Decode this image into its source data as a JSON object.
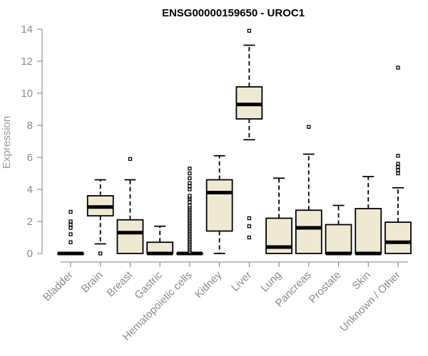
{
  "chart_data": {
    "type": "box",
    "title": "ENSG00000159650 - UROC1",
    "xlabel": "",
    "ylabel": "Expression",
    "ylim": [
      0,
      14
    ],
    "yticks": [
      0,
      2,
      4,
      6,
      8,
      10,
      12,
      14
    ],
    "grid": false,
    "colors": {
      "box_fill": "#efe9d4",
      "stroke": "#000000",
      "axis": "#7f7f7f",
      "tick_text": "#8c8c8c"
    },
    "categories": [
      "Bladder",
      "Brain",
      "Breast",
      "Gastric",
      "Hematopoietic cells",
      "Kidney",
      "Liver",
      "Lung",
      "Pancreas",
      "Prostate",
      "Skin",
      "Unknown / Other"
    ],
    "boxes": [
      {
        "category": "Bladder",
        "whisker_low": 0,
        "q1": 0,
        "median": 0,
        "q3": 0,
        "whisker_high": 0,
        "outliers": [
          0.7,
          1.2,
          1.6,
          1.8,
          2.0,
          2.6
        ]
      },
      {
        "category": "Brain",
        "whisker_low": 0.6,
        "q1": 2.35,
        "median": 2.9,
        "q3": 3.6,
        "whisker_high": 4.6,
        "outliers": [
          0
        ]
      },
      {
        "category": "Breast",
        "whisker_low": 0,
        "q1": 0,
        "median": 1.3,
        "q3": 2.1,
        "whisker_high": 4.6,
        "outliers": [
          5.9
        ]
      },
      {
        "category": "Gastric",
        "whisker_low": 0,
        "q1": 0,
        "median": 0,
        "q3": 0.7,
        "whisker_high": 1.7,
        "outliers": []
      },
      {
        "category": "Hematopoietic cells",
        "whisker_low": 0,
        "q1": 0,
        "median": 0,
        "q3": 0,
        "whisker_high": 0,
        "outliers": [
          0.1,
          0.2,
          0.3,
          0.4,
          0.5,
          0.6,
          0.7,
          0.8,
          0.9,
          1.0,
          1.1,
          1.2,
          1.3,
          1.4,
          1.5,
          1.6,
          1.7,
          1.8,
          1.9,
          2.0,
          2.1,
          2.2,
          2.3,
          2.4,
          2.5,
          2.6,
          2.7,
          2.8,
          2.9,
          3.0,
          3.2,
          3.4,
          3.5,
          3.6,
          4.0,
          4.2,
          4.4,
          4.7,
          5.0,
          5.3
        ]
      },
      {
        "category": "Kidney",
        "whisker_low": 0,
        "q1": 1.4,
        "median": 3.8,
        "q3": 4.6,
        "whisker_high": 6.1,
        "outliers": []
      },
      {
        "category": "Liver",
        "whisker_low": 7.1,
        "q1": 8.4,
        "median": 9.3,
        "q3": 10.4,
        "whisker_high": 13.0,
        "outliers": [
          13.9,
          2.2,
          1.7,
          1.0
        ]
      },
      {
        "category": "Lung",
        "whisker_low": 0,
        "q1": 0,
        "median": 0.4,
        "q3": 2.2,
        "whisker_high": 4.7,
        "outliers": []
      },
      {
        "category": "Pancreas",
        "whisker_low": 0,
        "q1": 0,
        "median": 1.6,
        "q3": 2.7,
        "whisker_high": 6.2,
        "outliers": [
          7.9
        ]
      },
      {
        "category": "Prostate",
        "whisker_low": 0,
        "q1": 0,
        "median": 0,
        "q3": 1.8,
        "whisker_high": 3.0,
        "outliers": []
      },
      {
        "category": "Skin",
        "whisker_low": 0,
        "q1": 0,
        "median": 0,
        "q3": 2.8,
        "whisker_high": 4.8,
        "outliers": []
      },
      {
        "category": "Unknown / Other",
        "whisker_low": 0,
        "q1": 0,
        "median": 0.7,
        "q3": 1.95,
        "whisker_high": 4.1,
        "outliers": [
          5.0,
          5.2,
          5.4,
          5.6,
          6.1,
          11.6
        ]
      }
    ]
  }
}
